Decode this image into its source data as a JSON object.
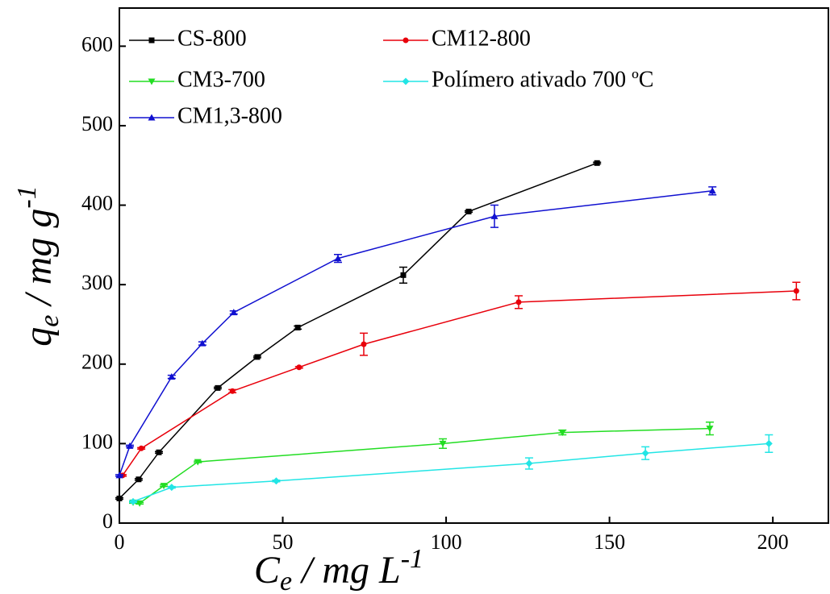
{
  "chart_data": {
    "type": "line",
    "xlabel": {
      "main": "C",
      "sub": "e",
      "rest": " / mg L",
      "sup": "-1"
    },
    "ylabel": {
      "main": "q",
      "sub": "e",
      "rest": " / mg g",
      "sup": "-1"
    },
    "xlim": [
      0,
      217
    ],
    "ylim": [
      0,
      648
    ],
    "xticks": [
      0,
      50,
      100,
      150,
      200
    ],
    "yticks": [
      0,
      100,
      200,
      300,
      400,
      500,
      600
    ],
    "series": [
      {
        "name": "CS-800",
        "color": "#000000",
        "marker": "square",
        "x": [
          0,
          5.9,
          12.1,
          30.1,
          42.2,
          54.6,
          86.9,
          106.9,
          146.2
        ],
        "values": [
          31,
          55,
          89,
          170,
          209,
          246,
          312,
          392,
          453
        ],
        "errors": [
          1,
          1,
          1,
          1,
          1,
          2,
          10,
          1,
          1
        ]
      },
      {
        "name": "CM12-800",
        "color": "#e8000b",
        "marker": "circle",
        "x": [
          1,
          6.7,
          34.6,
          55,
          74.8,
          122.2,
          207.2
        ],
        "values": [
          60,
          94,
          166,
          196,
          225,
          278,
          292
        ],
        "errors": [
          1,
          1,
          2,
          1,
          14,
          8,
          11
        ]
      },
      {
        "name": "CM3-700",
        "color": "#22dd22",
        "marker": "triangle-down",
        "x": [
          4.2,
          6.2,
          13.6,
          24,
          99,
          135.6,
          180.7
        ],
        "values": [
          26,
          25,
          47,
          77,
          100,
          114,
          119
        ],
        "errors": [
          1,
          1,
          1,
          1,
          6,
          3,
          8
        ]
      },
      {
        "name": "Polímero ativado 700 ºC",
        "color": "#22e5e5",
        "marker": "diamond",
        "x": [
          4.2,
          16,
          48,
          125.4,
          161,
          198.8
        ],
        "values": [
          27,
          45,
          53,
          75,
          88,
          100
        ],
        "errors": [
          1,
          1,
          1,
          7,
          8,
          11
        ]
      },
      {
        "name": "CM1,3-800",
        "color": "#1010d0",
        "marker": "triangle-up",
        "x": [
          0,
          3.2,
          16,
          25.4,
          35,
          66.9,
          114.8,
          181.5
        ],
        "values": [
          60,
          97,
          184,
          226,
          265,
          333,
          386,
          418
        ],
        "errors": [
          1,
          1,
          2,
          2,
          2,
          5,
          14,
          5
        ]
      }
    ]
  }
}
